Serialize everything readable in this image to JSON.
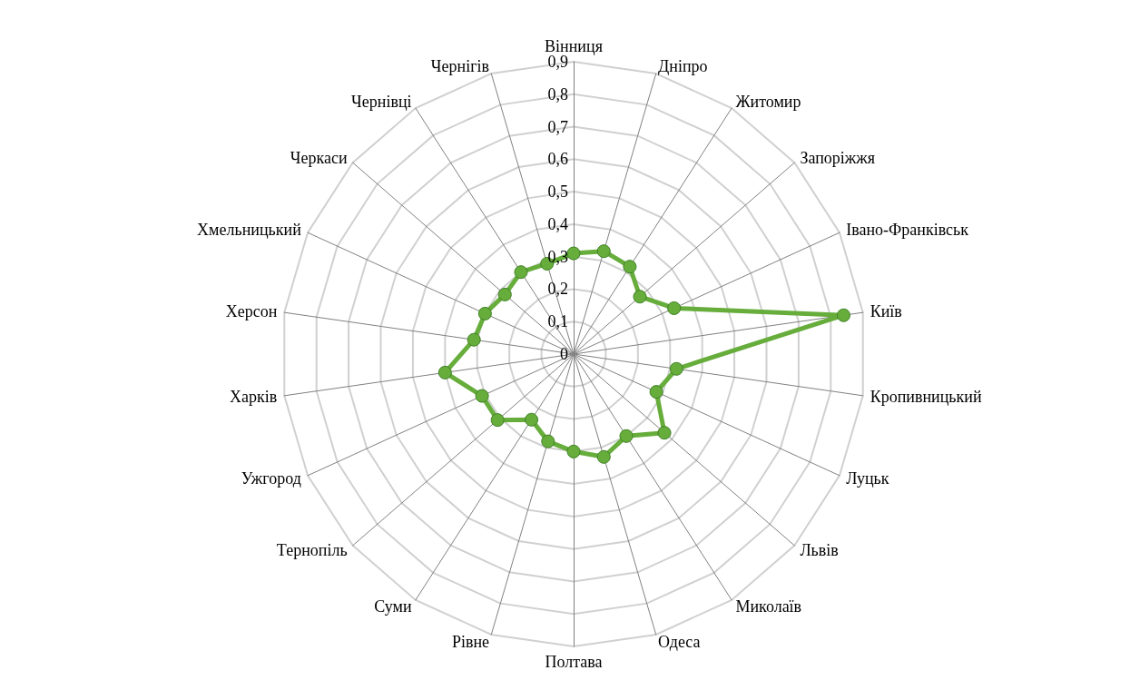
{
  "chart_data": {
    "type": "radar",
    "categories": [
      "Вінниця",
      "Дніпро",
      "Житомир",
      "Запоріжжя",
      "Івано-Франківськ",
      "Київ",
      "Кропивницький",
      "Луцьк",
      "Львів",
      "Миколаїв",
      "Одеса",
      "Полтава",
      "Рівне",
      "Суми",
      "Тернопіль",
      "Ужгород",
      "Харків",
      "Херсон",
      "Хмельницький",
      "Черкаси",
      "Чернівці",
      "Чернігів"
    ],
    "series": [
      {
        "color": "#66ad3c",
        "values": [
          0.31,
          0.33,
          0.32,
          0.27,
          0.34,
          0.84,
          0.32,
          0.28,
          0.37,
          0.3,
          0.33,
          0.3,
          0.28,
          0.24,
          0.31,
          0.31,
          0.4,
          0.31,
          0.3,
          0.28,
          0.3,
          0.29
        ]
      }
    ],
    "ylim": [
      0,
      0.9
    ],
    "yticks": [
      0,
      {
        "value": 0.1,
        "label": "0,1"
      },
      {
        "value": 0.2,
        "label": "0,2"
      },
      {
        "value": 0.3,
        "label": "0,3"
      },
      {
        "value": 0.4,
        "label": "0,4"
      },
      {
        "value": 0.5,
        "label": "0,5"
      },
      {
        "value": 0.6,
        "label": "0,6"
      },
      {
        "value": 0.7,
        "label": "0,7"
      },
      {
        "value": 0.8,
        "label": "0,8"
      },
      {
        "value": 0.9,
        "label": "0,9"
      }
    ],
    "marker": "circle",
    "grid": true
  }
}
